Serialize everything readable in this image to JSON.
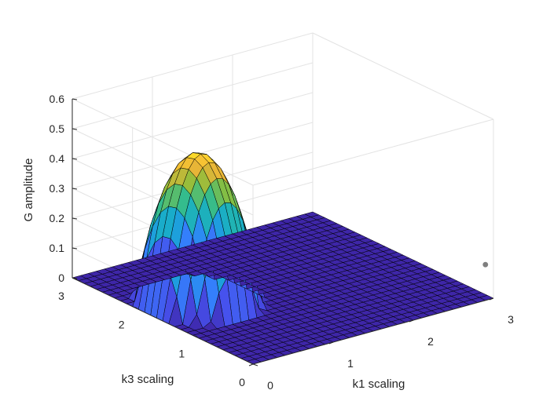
{
  "chart_data": {
    "type": "surface",
    "title": "",
    "xlabel": "k1 scaling",
    "ylabel": "k3 scaling",
    "zlabel": "G amplitude",
    "xlim": [
      0,
      3
    ],
    "ylim": [
      0,
      3
    ],
    "zlim": [
      0,
      0.6
    ],
    "xticks": [
      0,
      1,
      2,
      3
    ],
    "yticks": [
      0,
      1,
      2,
      3
    ],
    "zticks": [
      0,
      0.1,
      0.2,
      0.3,
      0.4,
      0.5,
      0.6
    ],
    "xtick_labels": [
      "0",
      "1",
      "2",
      "3"
    ],
    "ytick_labels": [
      "0",
      "1",
      "2",
      "3"
    ],
    "ztick_labels": [
      "0",
      "0.1",
      "0.2",
      "0.3",
      "0.4",
      "0.5",
      "0.6"
    ],
    "grid": true,
    "grid_points_per_axis": 31,
    "colormap": "parula",
    "peak": {
      "k1": 0.6,
      "k3": 1.7,
      "G": 0.5
    },
    "nonzero_region": {
      "k1": [
        0,
        1.2
      ],
      "k3": [
        1.0,
        2.4
      ]
    },
    "floor_value": 0,
    "marker": {
      "k1": 2.9,
      "k3": 0.0,
      "G": 0.12,
      "color": "#7f7f7f"
    },
    "colors": {
      "grid": "#e3e3e3",
      "axis": "#262626",
      "mesh": "#000000",
      "floor": "#3e26a8"
    }
  }
}
